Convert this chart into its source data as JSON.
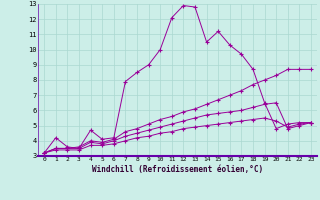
{
  "xlabel": "Windchill (Refroidissement éolien,°C)",
  "bg_color": "#cceee8",
  "grid_color": "#aad8d0",
  "line_color": "#990099",
  "xlim": [
    -0.5,
    23.5
  ],
  "ylim": [
    3,
    13
  ],
  "yticks": [
    3,
    4,
    5,
    6,
    7,
    8,
    9,
    10,
    11,
    12,
    13
  ],
  "xticks": [
    0,
    1,
    2,
    3,
    4,
    5,
    6,
    7,
    8,
    9,
    10,
    11,
    12,
    13,
    14,
    15,
    16,
    17,
    18,
    19,
    20,
    21,
    22,
    23
  ],
  "series": [
    {
      "x": [
        0,
        1,
        2,
        3,
        4,
        5,
        6,
        7,
        8,
        9,
        10,
        11,
        12,
        13,
        14,
        15,
        16,
        17,
        18,
        19,
        20,
        21,
        22,
        23
      ],
      "y": [
        3.2,
        4.2,
        3.6,
        3.5,
        4.7,
        4.1,
        4.2,
        7.9,
        8.5,
        9.0,
        10.0,
        12.1,
        12.9,
        12.8,
        10.5,
        11.2,
        10.3,
        9.7,
        8.7,
        6.5,
        4.8,
        5.1,
        5.2,
        5.2
      ]
    },
    {
      "x": [
        0,
        1,
        2,
        3,
        4,
        5,
        6,
        7,
        8,
        9,
        10,
        11,
        12,
        13,
        14,
        15,
        16,
        17,
        18,
        19,
        20,
        21,
        22,
        23
      ],
      "y": [
        3.2,
        3.5,
        3.5,
        3.6,
        4.0,
        3.9,
        4.1,
        4.6,
        4.8,
        5.1,
        5.4,
        5.6,
        5.9,
        6.1,
        6.4,
        6.7,
        7.0,
        7.3,
        7.7,
        8.0,
        8.3,
        8.7,
        8.7,
        8.7
      ]
    },
    {
      "x": [
        0,
        1,
        2,
        3,
        4,
        5,
        6,
        7,
        8,
        9,
        10,
        11,
        12,
        13,
        14,
        15,
        16,
        17,
        18,
        19,
        20,
        21,
        22,
        23
      ],
      "y": [
        3.2,
        3.5,
        3.5,
        3.5,
        3.9,
        3.8,
        4.0,
        4.3,
        4.5,
        4.7,
        4.9,
        5.1,
        5.3,
        5.5,
        5.7,
        5.8,
        5.9,
        6.0,
        6.2,
        6.4,
        6.5,
        4.8,
        5.0,
        5.2
      ]
    },
    {
      "x": [
        0,
        1,
        2,
        3,
        4,
        5,
        6,
        7,
        8,
        9,
        10,
        11,
        12,
        13,
        14,
        15,
        16,
        17,
        18,
        19,
        20,
        21,
        22,
        23
      ],
      "y": [
        3.2,
        3.4,
        3.4,
        3.4,
        3.7,
        3.7,
        3.8,
        4.0,
        4.2,
        4.3,
        4.5,
        4.6,
        4.8,
        4.9,
        5.0,
        5.1,
        5.2,
        5.3,
        5.4,
        5.5,
        5.3,
        4.9,
        5.1,
        5.2
      ]
    }
  ]
}
